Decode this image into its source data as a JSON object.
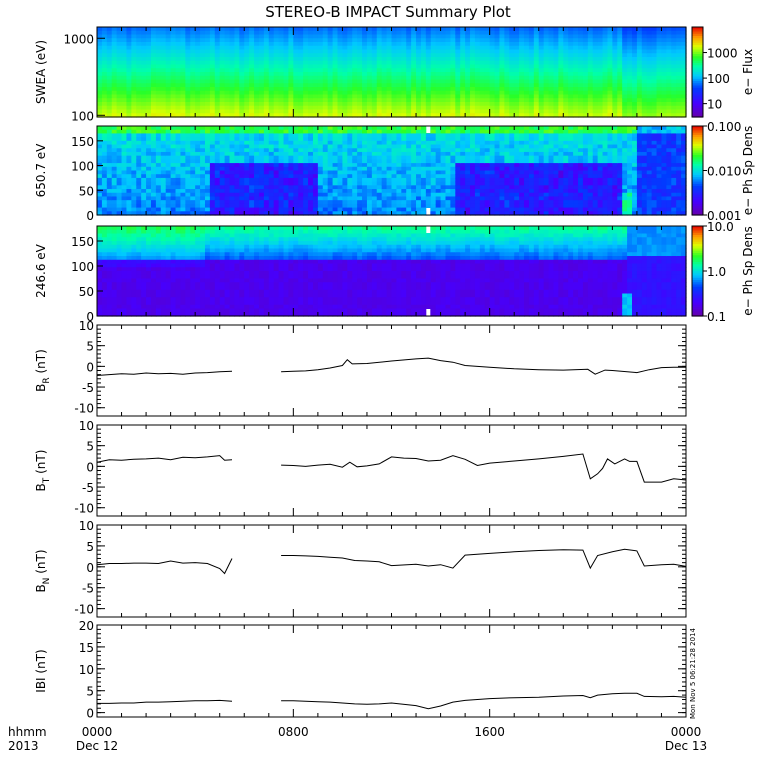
{
  "chart_data": [
    {
      "type": "heatmap",
      "title": "STEREO-B IMPACT Summary Plot",
      "ylabel": "SWEA (eV)",
      "yscale": "log",
      "yticks": [
        "100",
        "1000"
      ],
      "colorbar": {
        "label": "e− Flux",
        "scale": "log",
        "ticks": [
          "10",
          "100",
          "1000"
        ],
        "range": [
          3,
          10000
        ]
      }
    },
    {
      "type": "heatmap",
      "ylabel": "650.7 eV",
      "yticks": [
        "0",
        "50",
        "100",
        "150"
      ],
      "ylim": [
        0,
        180
      ],
      "colorbar": {
        "label": "e− Ph Sp Dens",
        "scale": "log",
        "ticks": [
          "0.001",
          "0.010",
          "0.100"
        ],
        "range": [
          0.001,
          0.1
        ]
      }
    },
    {
      "type": "heatmap",
      "ylabel": "246.6 eV",
      "yticks": [
        "0",
        "50",
        "100",
        "150"
      ],
      "ylim": [
        0,
        180
      ],
      "colorbar": {
        "label": "e− Ph Sp Dens",
        "scale": "log",
        "ticks": [
          "0.1",
          "1.0",
          "10.0"
        ],
        "range": [
          0.1,
          10
        ]
      }
    },
    {
      "type": "line",
      "ylabel_main": "B",
      "ylabel_sub": "R",
      "ylabel_unit": " (nT)",
      "ylim": [
        -12,
        10
      ],
      "yticks": [
        "-10",
        "-5",
        "0",
        "5",
        "10"
      ],
      "segments": [
        [
          [
            0,
            -2.2
          ],
          [
            0.5,
            -2.0
          ],
          [
            1,
            -1.8
          ],
          [
            1.5,
            -1.9
          ],
          [
            2,
            -1.6
          ],
          [
            2.5,
            -1.8
          ],
          [
            3,
            -1.7
          ],
          [
            3.5,
            -1.9
          ],
          [
            4,
            -1.6
          ],
          [
            4.5,
            -1.5
          ],
          [
            5,
            -1.3
          ],
          [
            5.5,
            -1.2
          ]
        ],
        [
          [
            7.5,
            -1.3
          ],
          [
            8,
            -1.2
          ],
          [
            8.5,
            -1.1
          ],
          [
            9,
            -0.8
          ],
          [
            9.5,
            -0.4
          ],
          [
            10,
            0.2
          ],
          [
            10.2,
            1.6
          ],
          [
            10.4,
            0.6
          ],
          [
            11,
            0.7
          ],
          [
            12,
            1.3
          ],
          [
            13,
            1.8
          ],
          [
            13.5,
            2.0
          ],
          [
            14,
            1.4
          ],
          [
            14.5,
            1.0
          ],
          [
            15,
            0.2
          ],
          [
            16,
            -0.2
          ],
          [
            17,
            -0.6
          ],
          [
            18,
            -0.8
          ],
          [
            19,
            -0.9
          ],
          [
            20,
            -0.7
          ],
          [
            20.3,
            -1.9
          ],
          [
            20.7,
            -0.9
          ],
          [
            21,
            -1.0
          ],
          [
            22,
            -1.5
          ],
          [
            22.5,
            -0.8
          ],
          [
            23,
            -0.3
          ],
          [
            23.5,
            -0.2
          ],
          [
            24,
            -0.2
          ]
        ]
      ]
    },
    {
      "type": "line",
      "ylabel_main": "B",
      "ylabel_sub": "T",
      "ylabel_unit": " (nT)",
      "ylim": [
        -12,
        10
      ],
      "yticks": [
        "-10",
        "-5",
        "0",
        "5",
        "10"
      ],
      "segments": [
        [
          [
            0,
            1.0
          ],
          [
            0.5,
            1.6
          ],
          [
            1,
            1.5
          ],
          [
            1.5,
            1.7
          ],
          [
            2,
            1.8
          ],
          [
            2.5,
            2.0
          ],
          [
            3,
            1.6
          ],
          [
            3.5,
            2.2
          ],
          [
            4,
            2.1
          ],
          [
            4.5,
            2.3
          ],
          [
            5,
            2.6
          ],
          [
            5.2,
            1.5
          ],
          [
            5.5,
            1.6
          ]
        ],
        [
          [
            7.5,
            0.3
          ],
          [
            8,
            0.2
          ],
          [
            8.5,
            0.0
          ],
          [
            9,
            0.3
          ],
          [
            9.5,
            0.5
          ],
          [
            10,
            -0.2
          ],
          [
            10.3,
            1.0
          ],
          [
            10.6,
            -0.1
          ],
          [
            11,
            0.1
          ],
          [
            11.5,
            0.6
          ],
          [
            12,
            2.3
          ],
          [
            12.5,
            2.0
          ],
          [
            13,
            1.9
          ],
          [
            13.5,
            1.3
          ],
          [
            14,
            1.5
          ],
          [
            14.5,
            2.6
          ],
          [
            15,
            1.7
          ],
          [
            15.5,
            0.2
          ],
          [
            16,
            0.8
          ],
          [
            17,
            1.3
          ],
          [
            18,
            1.8
          ],
          [
            19,
            2.4
          ],
          [
            19.8,
            3.0
          ],
          [
            20.1,
            -3.0
          ],
          [
            20.4,
            -1.8
          ],
          [
            20.6,
            -0.5
          ],
          [
            20.8,
            1.8
          ],
          [
            21.1,
            0.6
          ],
          [
            21.5,
            1.8
          ],
          [
            21.7,
            1.2
          ],
          [
            22,
            1.2
          ],
          [
            22.3,
            -3.8
          ],
          [
            23,
            -3.8
          ],
          [
            23.5,
            -3.0
          ],
          [
            24,
            -3.3
          ]
        ]
      ]
    },
    {
      "type": "line",
      "ylabel_main": "B",
      "ylabel_sub": "N",
      "ylabel_unit": " (nT)",
      "ylim": [
        -12,
        10
      ],
      "yticks": [
        "-10",
        "-5",
        "0",
        "5",
        "10"
      ],
      "segments": [
        [
          [
            0,
            0.5
          ],
          [
            0.5,
            0.8
          ],
          [
            1,
            0.8
          ],
          [
            1.5,
            0.9
          ],
          [
            2,
            0.9
          ],
          [
            2.5,
            0.8
          ],
          [
            3,
            1.4
          ],
          [
            3.5,
            0.9
          ],
          [
            4,
            1.0
          ],
          [
            4.5,
            0.8
          ],
          [
            5,
            -0.4
          ],
          [
            5.2,
            -1.6
          ],
          [
            5.5,
            2.0
          ]
        ],
        [
          [
            7.5,
            2.7
          ],
          [
            8,
            2.7
          ],
          [
            8.5,
            2.6
          ],
          [
            9,
            2.5
          ],
          [
            9.5,
            2.3
          ],
          [
            10,
            2.1
          ],
          [
            10.5,
            1.5
          ],
          [
            11,
            1.4
          ],
          [
            11.5,
            1.2
          ],
          [
            12,
            0.3
          ],
          [
            13,
            0.6
          ],
          [
            13.5,
            0.2
          ],
          [
            14,
            0.5
          ],
          [
            14.5,
            -0.3
          ],
          [
            15,
            2.8
          ],
          [
            16,
            3.2
          ],
          [
            17,
            3.6
          ],
          [
            18,
            3.9
          ],
          [
            19,
            4.1
          ],
          [
            19.8,
            4.0
          ],
          [
            20.1,
            -0.3
          ],
          [
            20.4,
            2.7
          ],
          [
            21,
            3.6
          ],
          [
            21.5,
            4.2
          ],
          [
            22,
            3.8
          ],
          [
            22.3,
            0.2
          ],
          [
            23,
            0.5
          ],
          [
            23.5,
            0.6
          ],
          [
            24,
            0.1
          ]
        ]
      ]
    },
    {
      "type": "line",
      "ylabel": "IBI (nT)",
      "ylim": [
        -1,
        20
      ],
      "yticks": [
        "0",
        "5",
        "10",
        "15",
        "20"
      ],
      "stamp": "Mon Nov  5 06:21:28 2014",
      "segments": [
        [
          [
            0,
            2.1
          ],
          [
            0.5,
            2.1
          ],
          [
            1,
            2.2
          ],
          [
            1.5,
            2.2
          ],
          [
            2,
            2.4
          ],
          [
            2.5,
            2.4
          ],
          [
            3,
            2.5
          ],
          [
            3.5,
            2.6
          ],
          [
            4,
            2.7
          ],
          [
            4.5,
            2.7
          ],
          [
            5,
            2.8
          ],
          [
            5.5,
            2.6
          ]
        ],
        [
          [
            7.5,
            2.7
          ],
          [
            8,
            2.7
          ],
          [
            8.5,
            2.6
          ],
          [
            9,
            2.5
          ],
          [
            9.5,
            2.4
          ],
          [
            10,
            2.2
          ],
          [
            10.5,
            2.0
          ],
          [
            11,
            1.9
          ],
          [
            11.5,
            2.0
          ],
          [
            12,
            2.2
          ],
          [
            13,
            1.6
          ],
          [
            13.5,
            0.9
          ],
          [
            14,
            1.5
          ],
          [
            14.5,
            2.4
          ],
          [
            15,
            2.8
          ],
          [
            16,
            3.2
          ],
          [
            17,
            3.4
          ],
          [
            18,
            3.5
          ],
          [
            19,
            3.8
          ],
          [
            19.8,
            3.9
          ],
          [
            20.1,
            3.4
          ],
          [
            20.4,
            4.0
          ],
          [
            21,
            4.3
          ],
          [
            21.5,
            4.4
          ],
          [
            22,
            4.4
          ],
          [
            22.3,
            3.7
          ],
          [
            23,
            3.6
          ],
          [
            23.5,
            3.7
          ],
          [
            24,
            3.5
          ]
        ]
      ]
    }
  ],
  "xaxis": {
    "row1": {
      "label": "hhmm",
      "ticks": [
        "0000",
        "0800",
        "1600",
        "0000"
      ]
    },
    "row2": {
      "label": "2013",
      "ticks": [
        "Dec 12",
        "",
        "",
        "Dec 13"
      ]
    },
    "tick_hours": [
      0,
      8,
      16,
      24
    ]
  }
}
